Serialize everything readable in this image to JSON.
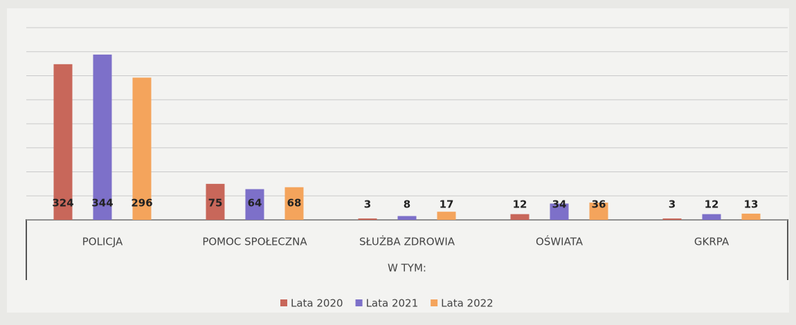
{
  "chart_data": {
    "type": "bar",
    "categories": [
      "POLICJA",
      "POMOC SPOŁECZNA",
      "SŁUŻBA ZDROWIA",
      "OŚWIATA",
      "GKRPA"
    ],
    "x_label": "W TYM:",
    "series": [
      {
        "name": "Lata 2020",
        "color": "#c8675a",
        "values": [
          324,
          75,
          3,
          12,
          3
        ]
      },
      {
        "name": "Lata 2021",
        "color": "#7d70c9",
        "values": [
          344,
          64,
          8,
          34,
          12
        ]
      },
      {
        "name": "Lata 2022",
        "color": "#f4a45c",
        "values": [
          296,
          68,
          17,
          36,
          13
        ]
      }
    ],
    "ylim": [
      0,
      400
    ],
    "yticks": [
      0,
      50,
      100,
      150,
      200,
      250,
      300,
      350,
      400
    ],
    "grid": true,
    "legend": "bottom"
  }
}
